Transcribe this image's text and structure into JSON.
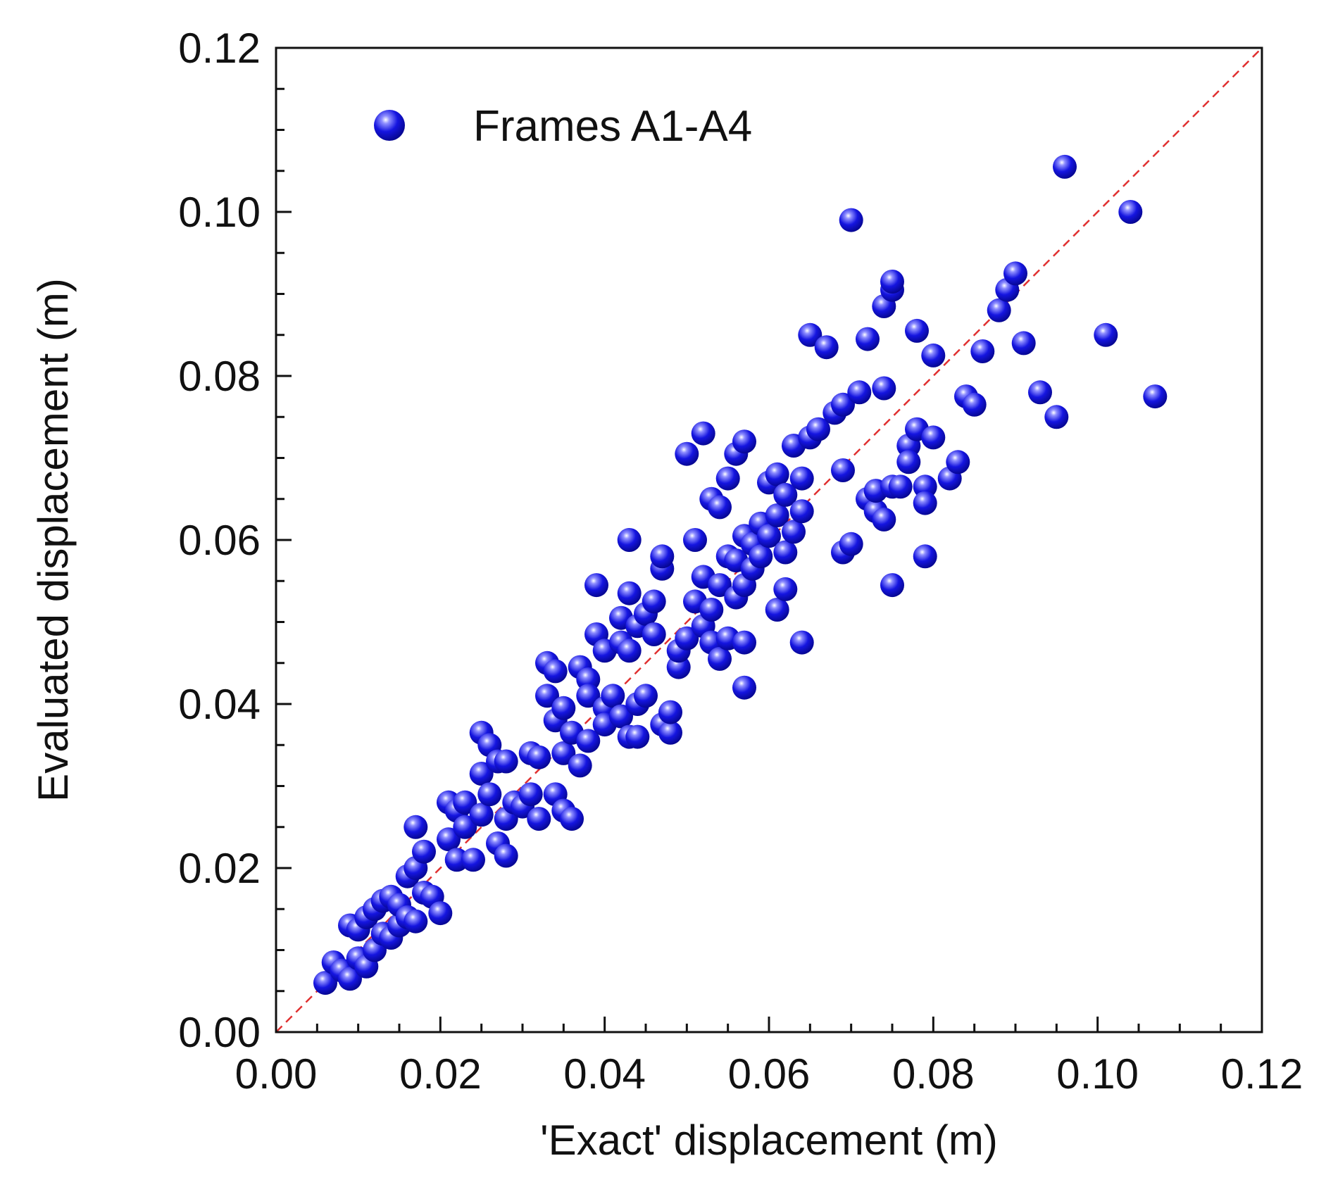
{
  "chart_data": {
    "type": "scatter",
    "xlabel": "'Exact' displacement (m)",
    "ylabel": "Evaluated displacement (m)",
    "xlim": [
      0,
      0.12
    ],
    "ylim": [
      0,
      0.12
    ],
    "xticks": [
      "0.00",
      "0.02",
      "0.04",
      "0.06",
      "0.08",
      "0.10",
      "0.12"
    ],
    "yticks": [
      "0.00",
      "0.02",
      "0.04",
      "0.06",
      "0.08",
      "0.10",
      "0.12"
    ],
    "grid": false,
    "legend_position": "top-left",
    "reference_line": {
      "from": [
        0,
        0
      ],
      "to": [
        0.12,
        0.12
      ],
      "style": "dashed",
      "color": "#e03030"
    },
    "series": [
      {
        "name": "Frames A1-A4",
        "color": "#1515e0",
        "points": [
          [
            0.006,
            0.006
          ],
          [
            0.007,
            0.0085
          ],
          [
            0.008,
            0.0075
          ],
          [
            0.009,
            0.0065
          ],
          [
            0.009,
            0.013
          ],
          [
            0.01,
            0.0125
          ],
          [
            0.01,
            0.009
          ],
          [
            0.011,
            0.008
          ],
          [
            0.011,
            0.014
          ],
          [
            0.012,
            0.015
          ],
          [
            0.012,
            0.01
          ],
          [
            0.013,
            0.016
          ],
          [
            0.013,
            0.012
          ],
          [
            0.014,
            0.0165
          ],
          [
            0.014,
            0.0115
          ],
          [
            0.015,
            0.013
          ],
          [
            0.015,
            0.0155
          ],
          [
            0.016,
            0.014
          ],
          [
            0.016,
            0.019
          ],
          [
            0.017,
            0.02
          ],
          [
            0.017,
            0.025
          ],
          [
            0.017,
            0.0135
          ],
          [
            0.018,
            0.017
          ],
          [
            0.018,
            0.022
          ],
          [
            0.019,
            0.0165
          ],
          [
            0.02,
            0.0145
          ],
          [
            0.021,
            0.028
          ],
          [
            0.021,
            0.0235
          ],
          [
            0.022,
            0.027
          ],
          [
            0.022,
            0.021
          ],
          [
            0.023,
            0.028
          ],
          [
            0.023,
            0.025
          ],
          [
            0.024,
            0.021
          ],
          [
            0.025,
            0.0365
          ],
          [
            0.025,
            0.0315
          ],
          [
            0.025,
            0.0265
          ],
          [
            0.026,
            0.035
          ],
          [
            0.026,
            0.029
          ],
          [
            0.027,
            0.033
          ],
          [
            0.027,
            0.023
          ],
          [
            0.028,
            0.0215
          ],
          [
            0.028,
            0.026
          ],
          [
            0.028,
            0.033
          ],
          [
            0.029,
            0.028
          ],
          [
            0.03,
            0.0275
          ],
          [
            0.031,
            0.034
          ],
          [
            0.031,
            0.029
          ],
          [
            0.032,
            0.026
          ],
          [
            0.032,
            0.0335
          ],
          [
            0.033,
            0.041
          ],
          [
            0.033,
            0.045
          ],
          [
            0.034,
            0.029
          ],
          [
            0.034,
            0.044
          ],
          [
            0.034,
            0.038
          ],
          [
            0.035,
            0.034
          ],
          [
            0.035,
            0.027
          ],
          [
            0.035,
            0.0395
          ],
          [
            0.036,
            0.0365
          ],
          [
            0.036,
            0.026
          ],
          [
            0.037,
            0.0325
          ],
          [
            0.037,
            0.0445
          ],
          [
            0.038,
            0.043
          ],
          [
            0.038,
            0.041
          ],
          [
            0.038,
            0.0355
          ],
          [
            0.039,
            0.0485
          ],
          [
            0.039,
            0.0545
          ],
          [
            0.04,
            0.0465
          ],
          [
            0.04,
            0.0395
          ],
          [
            0.04,
            0.0375
          ],
          [
            0.041,
            0.041
          ],
          [
            0.042,
            0.0505
          ],
          [
            0.042,
            0.0475
          ],
          [
            0.042,
            0.0385
          ],
          [
            0.043,
            0.0465
          ],
          [
            0.043,
            0.0535
          ],
          [
            0.043,
            0.06
          ],
          [
            0.043,
            0.036
          ],
          [
            0.044,
            0.04
          ],
          [
            0.044,
            0.0495
          ],
          [
            0.044,
            0.036
          ],
          [
            0.045,
            0.041
          ],
          [
            0.045,
            0.051
          ],
          [
            0.046,
            0.0525
          ],
          [
            0.046,
            0.0485
          ],
          [
            0.047,
            0.0375
          ],
          [
            0.047,
            0.0565
          ],
          [
            0.047,
            0.058
          ],
          [
            0.048,
            0.0365
          ],
          [
            0.048,
            0.039
          ],
          [
            0.049,
            0.0445
          ],
          [
            0.049,
            0.0465
          ],
          [
            0.05,
            0.0705
          ],
          [
            0.05,
            0.048
          ],
          [
            0.051,
            0.06
          ],
          [
            0.051,
            0.0525
          ],
          [
            0.052,
            0.0555
          ],
          [
            0.052,
            0.0495
          ],
          [
            0.052,
            0.073
          ],
          [
            0.053,
            0.065
          ],
          [
            0.053,
            0.0515
          ],
          [
            0.053,
            0.0475
          ],
          [
            0.054,
            0.064
          ],
          [
            0.054,
            0.0545
          ],
          [
            0.054,
            0.0455
          ],
          [
            0.055,
            0.058
          ],
          [
            0.055,
            0.0675
          ],
          [
            0.055,
            0.048
          ],
          [
            0.056,
            0.0705
          ],
          [
            0.056,
            0.0575
          ],
          [
            0.056,
            0.053
          ],
          [
            0.057,
            0.072
          ],
          [
            0.057,
            0.0605
          ],
          [
            0.057,
            0.0545
          ],
          [
            0.057,
            0.0475
          ],
          [
            0.057,
            0.042
          ],
          [
            0.058,
            0.0565
          ],
          [
            0.058,
            0.0595
          ],
          [
            0.059,
            0.062
          ],
          [
            0.059,
            0.058
          ],
          [
            0.06,
            0.0605
          ],
          [
            0.06,
            0.067
          ],
          [
            0.061,
            0.068
          ],
          [
            0.061,
            0.0515
          ],
          [
            0.061,
            0.063
          ],
          [
            0.062,
            0.0585
          ],
          [
            0.062,
            0.0655
          ],
          [
            0.062,
            0.054
          ],
          [
            0.063,
            0.0715
          ],
          [
            0.063,
            0.061
          ],
          [
            0.064,
            0.0635
          ],
          [
            0.064,
            0.0675
          ],
          [
            0.064,
            0.0475
          ],
          [
            0.065,
            0.0725
          ],
          [
            0.065,
            0.085
          ],
          [
            0.066,
            0.0735
          ],
          [
            0.067,
            0.0835
          ],
          [
            0.068,
            0.0755
          ],
          [
            0.069,
            0.0765
          ],
          [
            0.069,
            0.0685
          ],
          [
            0.069,
            0.0585
          ],
          [
            0.07,
            0.0595
          ],
          [
            0.07,
            0.099
          ],
          [
            0.071,
            0.078
          ],
          [
            0.072,
            0.065
          ],
          [
            0.072,
            0.0845
          ],
          [
            0.073,
            0.0635
          ],
          [
            0.073,
            0.066
          ],
          [
            0.074,
            0.0625
          ],
          [
            0.074,
            0.0785
          ],
          [
            0.074,
            0.0885
          ],
          [
            0.075,
            0.0905
          ],
          [
            0.075,
            0.0545
          ],
          [
            0.075,
            0.0665
          ],
          [
            0.075,
            0.0915
          ],
          [
            0.076,
            0.0665
          ],
          [
            0.077,
            0.0715
          ],
          [
            0.077,
            0.0695
          ],
          [
            0.078,
            0.0855
          ],
          [
            0.078,
            0.0735
          ],
          [
            0.079,
            0.0665
          ],
          [
            0.079,
            0.0645
          ],
          [
            0.079,
            0.058
          ],
          [
            0.08,
            0.0825
          ],
          [
            0.08,
            0.0725
          ],
          [
            0.082,
            0.0675
          ],
          [
            0.083,
            0.0695
          ],
          [
            0.084,
            0.0775
          ],
          [
            0.085,
            0.0765
          ],
          [
            0.086,
            0.083
          ],
          [
            0.088,
            0.088
          ],
          [
            0.089,
            0.0905
          ],
          [
            0.09,
            0.0925
          ],
          [
            0.091,
            0.084
          ],
          [
            0.093,
            0.078
          ],
          [
            0.095,
            0.075
          ],
          [
            0.096,
            0.1055
          ],
          [
            0.101,
            0.085
          ],
          [
            0.104,
            0.1
          ],
          [
            0.107,
            0.0775
          ]
        ]
      }
    ]
  }
}
